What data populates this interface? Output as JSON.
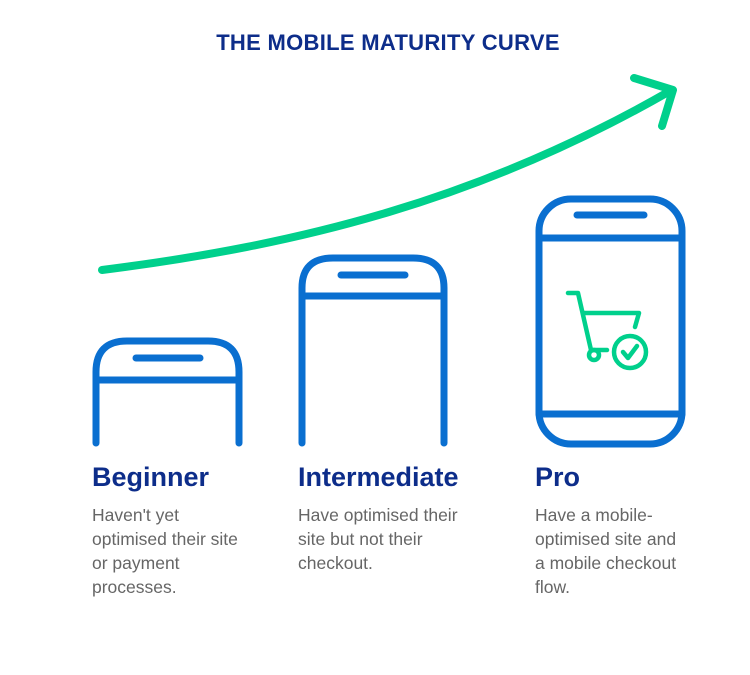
{
  "title": "THE MOBILE MATURITY CURVE",
  "colors": {
    "title": "#0d2d8a",
    "phone": "#0a6fd0",
    "accent": "#00d08c",
    "text": "#666666"
  },
  "stages": [
    {
      "label": "Beginner",
      "description": "Haven't yet optimised their site or payment processes."
    },
    {
      "label": "Intermediate",
      "description": "Have optimised their site but not their checkout."
    },
    {
      "label": "Pro",
      "description": "Have a mobile-optimised site and a mobile checkout flow.",
      "icon": "cart-check-icon"
    }
  ]
}
